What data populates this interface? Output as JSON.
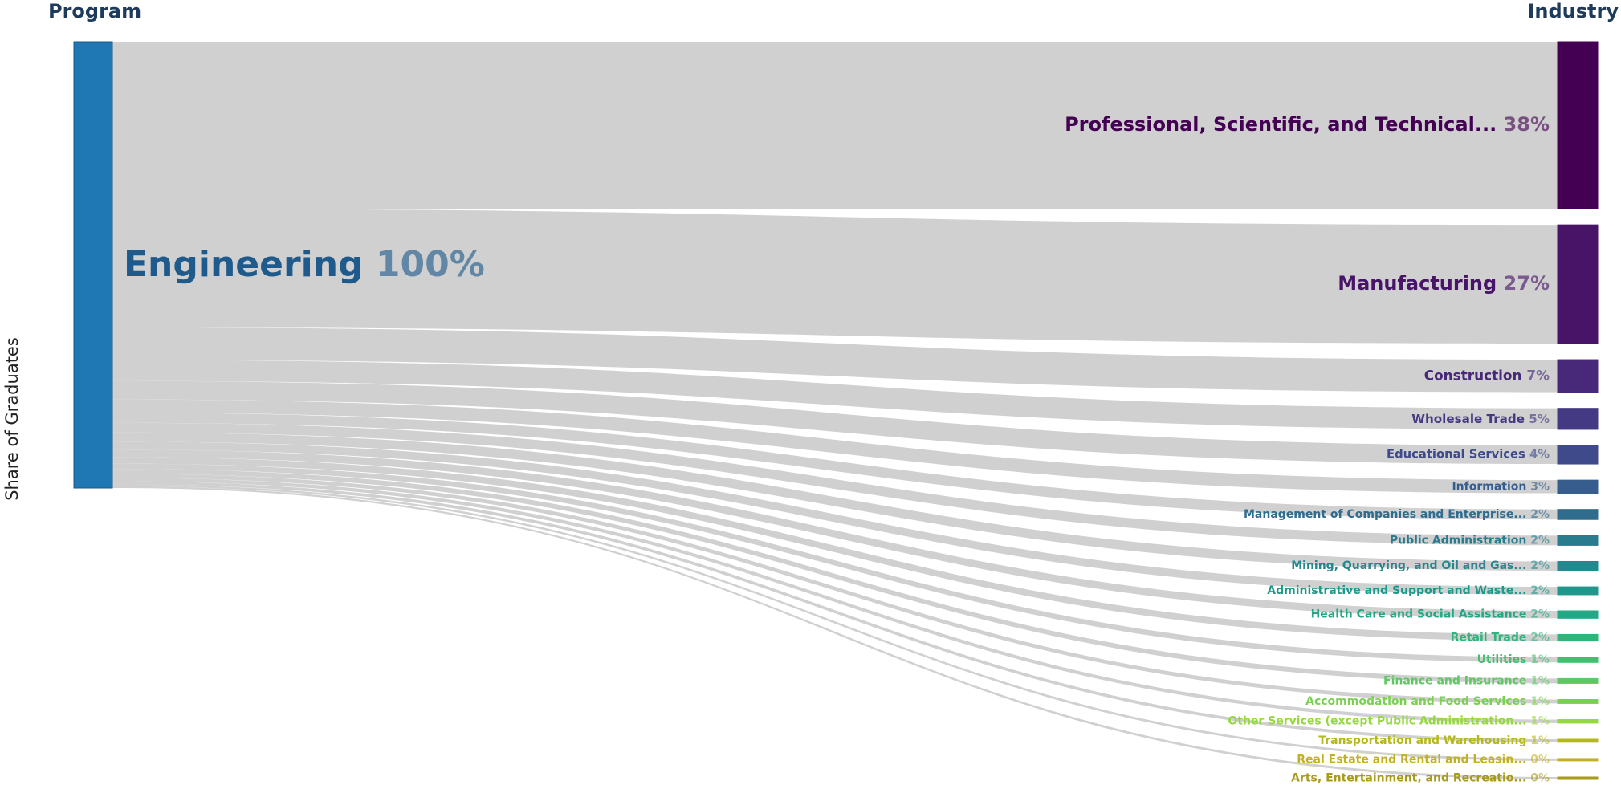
{
  "chart_data": {
    "type": "sankey",
    "left_header": "Program",
    "right_header": "Industry",
    "ylabel": "Share of Graduates",
    "source": {
      "label": "Engineering",
      "percent_label": "100%",
      "value": 100,
      "color": "#1f77b4"
    },
    "targets": [
      {
        "label": "Professional, Scientific, and Technical...",
        "percent_label": "38%",
        "value": 38,
        "color": "#440154"
      },
      {
        "label": "Manufacturing",
        "percent_label": "27%",
        "value": 27,
        "color": "#481467"
      },
      {
        "label": "Construction",
        "percent_label": "7%",
        "value": 7.4,
        "color": "#482878"
      },
      {
        "label": "Wholesale Trade",
        "percent_label": "5%",
        "value": 4.8,
        "color": "#443a83"
      },
      {
        "label": "Educational Services",
        "percent_label": "4%",
        "value": 4.2,
        "color": "#3e4a89"
      },
      {
        "label": "Information",
        "percent_label": "3%",
        "value": 3.0,
        "color": "#365d8d"
      },
      {
        "label": "Management of Companies and Enterprise...",
        "percent_label": "2%",
        "value": 2.3,
        "color": "#2f6c8e"
      },
      {
        "label": "Public Administration",
        "percent_label": "2%",
        "value": 2.2,
        "color": "#297b8e"
      },
      {
        "label": "Mining, Quarrying, and Oil and Gas...",
        "percent_label": "2%",
        "value": 2.1,
        "color": "#23898e"
      },
      {
        "label": "Administrative and Support and Waste...",
        "percent_label": "2%",
        "value": 1.8,
        "color": "#1f988b"
      },
      {
        "label": "Health Care and Social Assistance",
        "percent_label": "2%",
        "value": 1.7,
        "color": "#22a884"
      },
      {
        "label": "Retail Trade",
        "percent_label": "2%",
        "value": 1.5,
        "color": "#2fb47c"
      },
      {
        "label": "Utilities",
        "percent_label": "1%",
        "value": 1.2,
        "color": "#44bf70"
      },
      {
        "label": "Finance and Insurance",
        "percent_label": "1%",
        "value": 1.1,
        "color": "#5ec962"
      },
      {
        "label": "Accommodation and Food Services",
        "percent_label": "1%",
        "value": 0.9,
        "color": "#7ad151"
      },
      {
        "label": "Other Services (except Public Administration...",
        "percent_label": "1%",
        "value": 0.8,
        "color": "#95d840"
      },
      {
        "label": "Transportation and Warehousing",
        "percent_label": "1%",
        "value": 0.7,
        "color": "#b5b81e"
      },
      {
        "label": "Real Estate and Rental and Leasin...",
        "percent_label": "0%",
        "value": 0.45,
        "color": "#c2b124"
      },
      {
        "label": "Arts, Entertainment, and Recreatio...",
        "percent_label": "0%",
        "value": 0.4,
        "color": "#a89a1b"
      }
    ],
    "link_color": "#c8c8c8"
  }
}
